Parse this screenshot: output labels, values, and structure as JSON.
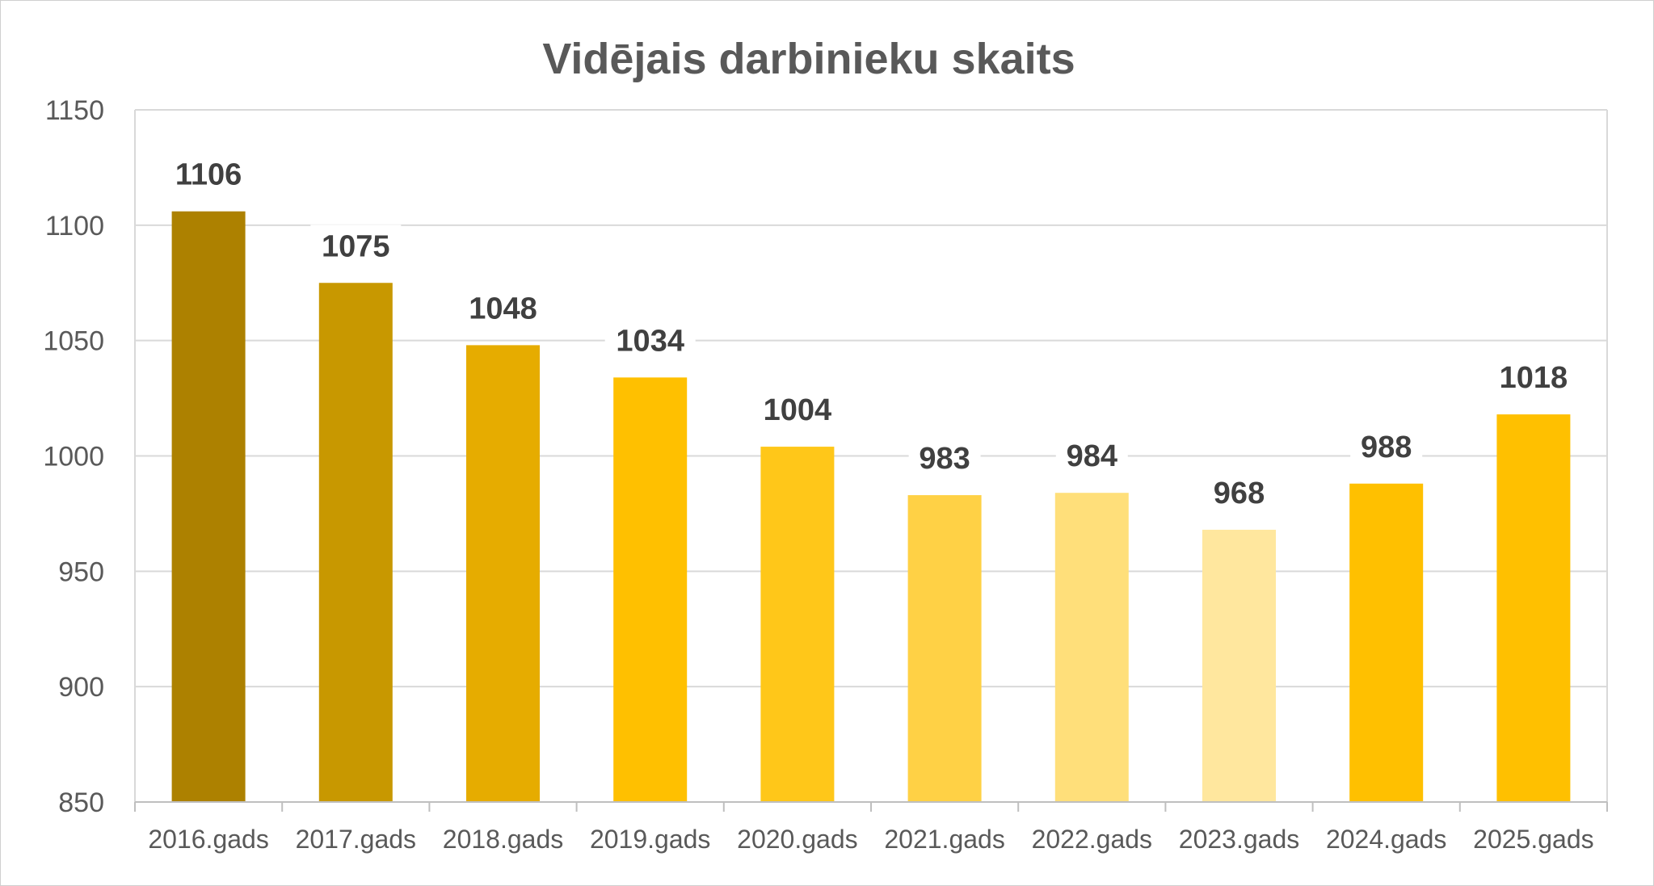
{
  "chart_data": {
    "type": "bar",
    "title": "Vidējais darbinieku skaits",
    "xlabel": "",
    "ylabel": "",
    "categories": [
      "2016.gads",
      "2017.gads",
      "2018.gads",
      "2019.gads",
      "2020.gads",
      "2021.gads",
      "2022.gads",
      "2023.gads",
      "2024.gads",
      "2025.gads"
    ],
    "values": [
      1106,
      1075,
      1048,
      1034,
      1004,
      983,
      984,
      968,
      988,
      1018
    ],
    "data_labels": [
      "1106",
      "1075",
      "1048",
      "1034",
      "1004",
      "983",
      "984",
      "968",
      "988",
      "1018"
    ],
    "bar_colors": [
      "#AD8100",
      "#C89800",
      "#E6AC00",
      "#FFC000",
      "#FFC719",
      "#FFD145",
      "#FFDF7A",
      "#FFE79E",
      "#FFC000",
      "#FFC000"
    ],
    "ylim": [
      850,
      1150
    ],
    "yticks": [
      850,
      900,
      950,
      1000,
      1050,
      1100,
      1150
    ],
    "ytick_labels": [
      "850",
      "900",
      "950",
      "1000",
      "1050",
      "1100",
      "1150"
    ],
    "grid": true,
    "gridline_color": "#D9D9D9",
    "legend": "none"
  }
}
